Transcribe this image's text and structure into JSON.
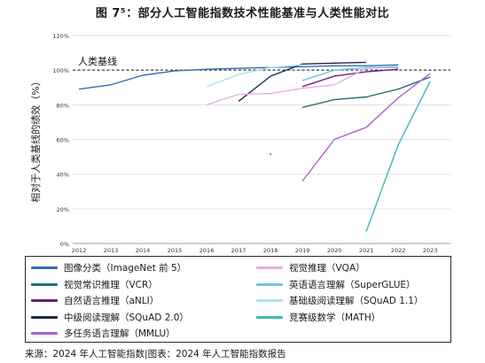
{
  "title": "图 7⁵：部分人工智能指数技术性能基准与人类性能对比",
  "source": "来源：2024 年人工智能指数|图表：2024 年人工智能指数报告",
  "chart_data": {
    "type": "line",
    "title": "图 7⁵：部分人工智能指数技术性能基准与人类性能对比",
    "xlabel": "",
    "ylabel": "相对于人类基线的绩效（%）",
    "x": [
      "2012",
      "2013",
      "2014",
      "2015",
      "2016",
      "2017",
      "2018",
      "2019",
      "2020",
      "2021",
      "2022",
      "2023"
    ],
    "ylim": [
      0,
      120
    ],
    "yticks": [
      "0%",
      "20%",
      "40%",
      "60%",
      "80%",
      "100%",
      "120%"
    ],
    "grid": true,
    "baseline": {
      "value": 100,
      "label": "人类基线"
    },
    "series": [
      {
        "name": "图像分类（ImageNet 前 5）",
        "color": "#2f6db5",
        "points": [
          [
            "2012",
            89
          ],
          [
            "2013",
            91.5
          ],
          [
            "2014",
            97
          ],
          [
            "2015",
            99.5
          ],
          [
            "2016",
            100.5
          ],
          [
            "2017",
            101
          ],
          [
            "2018",
            101.5
          ],
          [
            "2019",
            102
          ],
          [
            "2020",
            102.5
          ],
          [
            "2021",
            102.5
          ],
          [
            "2022",
            103
          ]
        ]
      },
      {
        "name": "视觉常识推理（VCR）",
        "color": "#1f6f73",
        "points": [
          [
            "2019",
            78.5
          ],
          [
            "2020",
            83
          ],
          [
            "2021",
            84.5
          ],
          [
            "2022",
            89
          ],
          [
            "2023",
            96
          ]
        ]
      },
      {
        "name": "自然语言推理（aNLI）",
        "color": "#6b1f7a",
        "points": [
          [
            "2019",
            90.5
          ],
          [
            "2020",
            96.5
          ],
          [
            "2021",
            99
          ],
          [
            "2022",
            100.5
          ]
        ]
      },
      {
        "name": "中级阅读理解（SQuAD 2.0）",
        "color": "#1c2b4a",
        "points": [
          [
            "2017",
            82
          ],
          [
            "2018",
            96.5
          ],
          [
            "2019",
            103.5
          ],
          [
            "2020",
            104
          ],
          [
            "2021",
            104.5
          ]
        ]
      },
      {
        "name": "多任务语言理解（MMLU）",
        "color": "#b05ad6",
        "points": [
          [
            "2019",
            36
          ],
          [
            "2020",
            60
          ],
          [
            "2021",
            67
          ],
          [
            "2022",
            84
          ],
          [
            "2023",
            98
          ]
        ]
      },
      {
        "name": "视觉推理（VQA）",
        "color": "#e6aee6",
        "points": [
          [
            "2016",
            80
          ],
          [
            "2017",
            86
          ],
          [
            "2018",
            86.5
          ],
          [
            "2019",
            89.5
          ],
          [
            "2020",
            91.5
          ],
          [
            "2021",
            101
          ],
          [
            "2022",
            102
          ]
        ]
      },
      {
        "name": "英语语言理解（SuperGLUE）",
        "color": "#6ec3ea",
        "points": [
          [
            "2019",
            94
          ],
          [
            "2020",
            100
          ],
          [
            "2021",
            101.5
          ],
          [
            "2022",
            101.5
          ]
        ]
      },
      {
        "name": "基础级阅读理解（SQuAD 1.1）",
        "color": "#a7e3ee",
        "points": [
          [
            "2016",
            90.5
          ],
          [
            "2017",
            97.5
          ],
          [
            "2018",
            101.5
          ],
          [
            "2019",
            103
          ]
        ]
      },
      {
        "name": "竞赛级数学（MATH）",
        "color": "#3fb8b8",
        "points": [
          [
            "2018",
            51.5
          ],
          [
            "2019",
            null
          ],
          [
            "2021",
            7
          ],
          [
            "2022",
            57
          ],
          [
            "2023",
            93.5
          ]
        ]
      }
    ]
  },
  "legend_left": [
    0,
    1,
    2,
    3,
    4
  ],
  "legend_right": [
    5,
    6,
    7,
    8
  ]
}
